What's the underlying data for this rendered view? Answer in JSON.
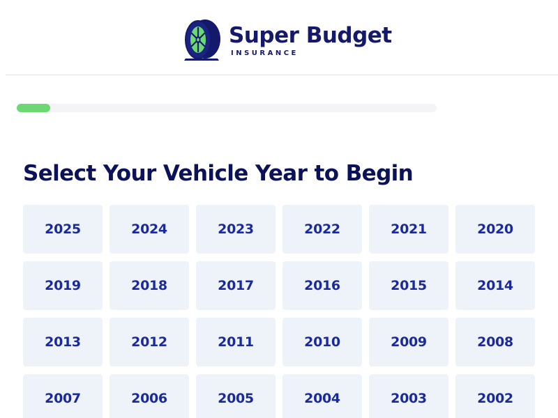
{
  "brand": {
    "name": "Super Budget",
    "tagline": "INSURANCE",
    "colors": {
      "navy": "#14196b",
      "wheel": "#6bd873",
      "accent_green": "#6bd873"
    },
    "logo_icon": "tire-wheel-icon"
  },
  "progress": {
    "value": 0.08,
    "track_color": "#f4f4f6",
    "fill_color": "#6bd873"
  },
  "heading": "Select Your Vehicle Year to Begin",
  "years": [
    "2025",
    "2024",
    "2023",
    "2022",
    "2021",
    "2020",
    "2019",
    "2018",
    "2017",
    "2016",
    "2015",
    "2014",
    "2013",
    "2012",
    "2011",
    "2010",
    "2009",
    "2008",
    "2007",
    "2006",
    "2005",
    "2004",
    "2003",
    "2002"
  ],
  "colors": {
    "button_bg": "#eef3fa",
    "button_text": "#1a2a9c",
    "heading_text": "#0c1259"
  }
}
